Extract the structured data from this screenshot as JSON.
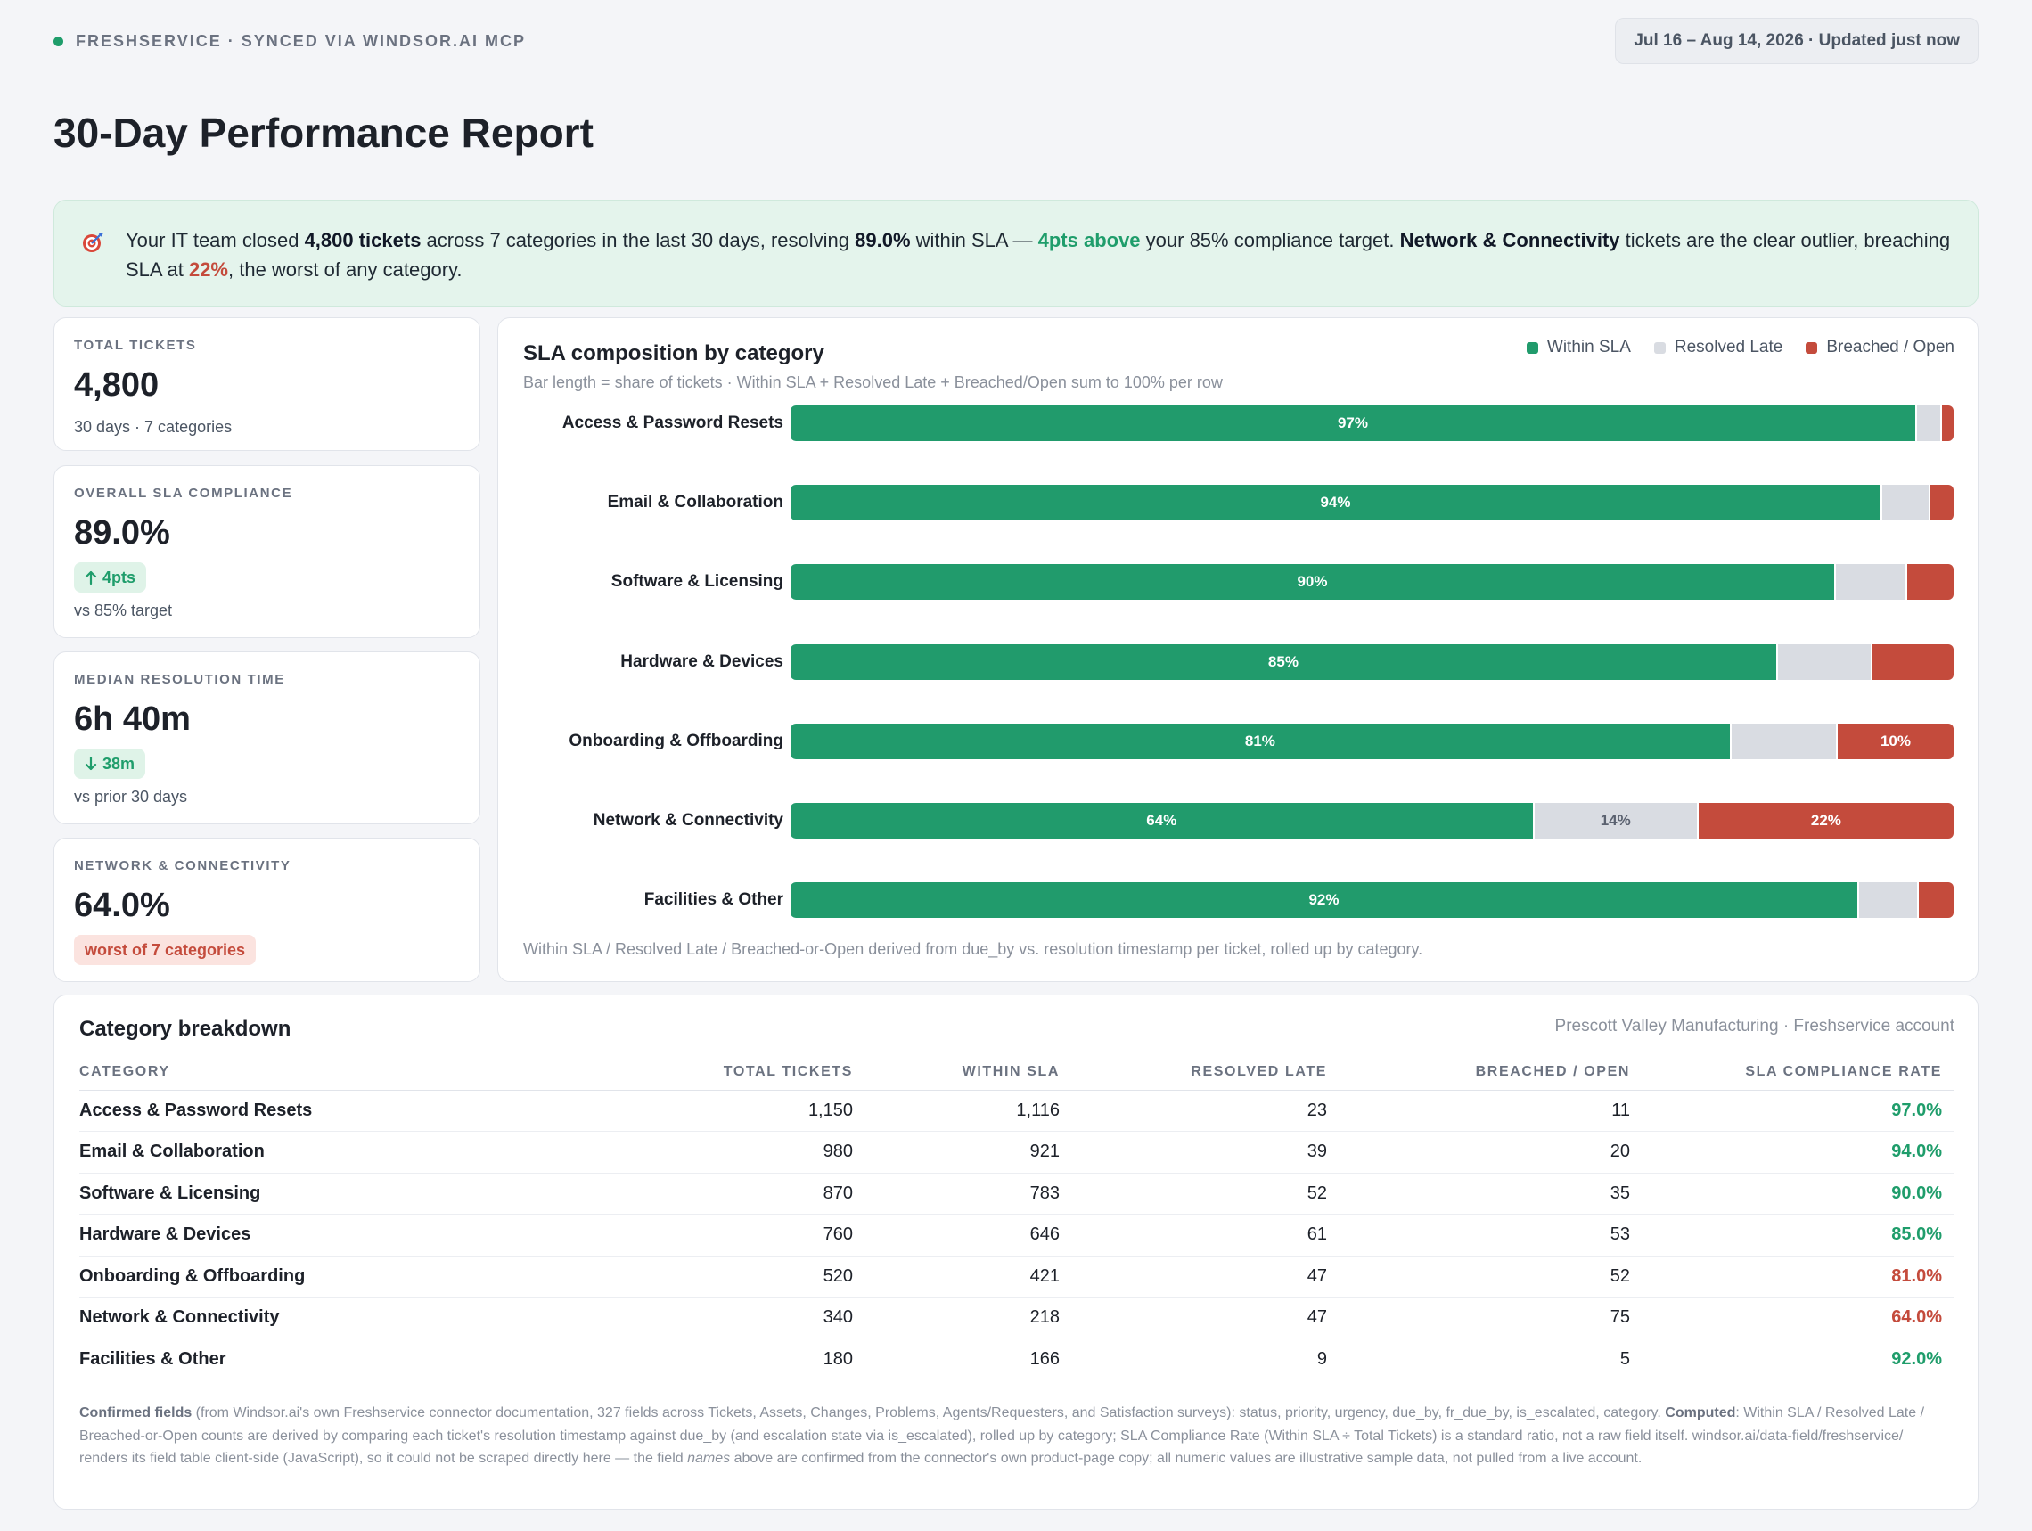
{
  "header": {
    "source": "FRESHSERVICE · SYNCED VIA WINDSOR.AI MCP",
    "date_range": "Jul 16 – Aug 14, 2026 · Updated just now",
    "title": "30-Day Performance Report"
  },
  "summary": {
    "p1": "Your IT team closed ",
    "p2": "4,800 tickets",
    "p3": " across 7 categories in the last 30 days, resolving ",
    "p4": "89.0%",
    "p5": " within SLA — ",
    "p6": "4pts above",
    "p7": " your 85% compliance target. ",
    "p8": "Network & Connectivity",
    "p9": " tickets are the clear outlier, breaching SLA at ",
    "p10": "22%",
    "p11": ", the worst of any category."
  },
  "kpis": {
    "total": {
      "label": "TOTAL TICKETS",
      "value": "4,800",
      "sub": "30 days · 7 categories"
    },
    "sla": {
      "label": "OVERALL SLA COMPLIANCE",
      "value": "89.0%",
      "chip": "4pts",
      "sub": "vs 85% target"
    },
    "median": {
      "label": "MEDIAN RESOLUTION TIME",
      "value": "6h 40m",
      "chip": "38m",
      "sub": "vs prior 30 days"
    },
    "network": {
      "label": "NETWORK & CONNECTIVITY",
      "value": "64.0%",
      "chip": "worst of 7 categories"
    }
  },
  "chart": {
    "footnote": "Within SLA / Resolved Late / Breached-or-Open derived from due_by vs. resolution timestamp per ticket, rolled up by category."
  },
  "chart_data": {
    "type": "bar",
    "stacked": true,
    "orientation": "horizontal",
    "title": "SLA composition by category",
    "subtitle": "Bar length = share of tickets · Within SLA + Resolved Late + Breached/Open sum to 100% per row",
    "legend_position": "top-right",
    "categories": [
      "Access & Password Resets",
      "Email & Collaboration",
      "Software & Licensing",
      "Hardware & Devices",
      "Onboarding & Offboarding",
      "Network & Connectivity",
      "Facilities & Other"
    ],
    "series": [
      {
        "name": "Within SLA",
        "color": "#219b6c",
        "values": [
          97.0,
          94.0,
          90.0,
          85.0,
          81.0,
          64.0,
          92.0
        ],
        "labels": [
          "97%",
          "94%",
          "90%",
          "85%",
          "81%",
          "64%",
          "92%"
        ]
      },
      {
        "name": "Resolved Late",
        "color": "#d9dce2",
        "values": [
          2.0,
          4.0,
          6.0,
          8.0,
          9.0,
          14.0,
          5.0
        ],
        "labels": [
          "",
          "",
          "",
          "",
          "",
          "14%",
          ""
        ]
      },
      {
        "name": "Breached / Open",
        "color": "#c44b3c",
        "values": [
          1.0,
          2.0,
          4.0,
          7.0,
          10.0,
          22.0,
          3.0
        ],
        "labels": [
          "",
          "",
          "",
          "",
          "10%",
          "22%",
          ""
        ]
      }
    ],
    "xlim": [
      0,
      100
    ]
  },
  "table": {
    "title": "Category breakdown",
    "account": "Prescott Valley Manufacturing · Freshservice account",
    "columns": [
      "CATEGORY",
      "TOTAL TICKETS",
      "WITHIN SLA",
      "RESOLVED LATE",
      "BREACHED / OPEN",
      "SLA COMPLIANCE RATE"
    ],
    "rows": [
      [
        "Access & Password Resets",
        "1,150",
        "1,116",
        "23",
        "11",
        "97.0%"
      ],
      [
        "Email & Collaboration",
        "980",
        "921",
        "39",
        "20",
        "94.0%"
      ],
      [
        "Software & Licensing",
        "870",
        "783",
        "52",
        "35",
        "90.0%"
      ],
      [
        "Hardware & Devices",
        "760",
        "646",
        "61",
        "53",
        "85.0%"
      ],
      [
        "Onboarding & Offboarding",
        "520",
        "421",
        "47",
        "52",
        "81.0%"
      ],
      [
        "Network & Connectivity",
        "340",
        "218",
        "47",
        "75",
        "64.0%"
      ],
      [
        "Facilities & Other",
        "180",
        "166",
        "9",
        "5",
        "92.0%"
      ]
    ],
    "notes": {
      "n1": "Confirmed fields",
      "n2": " (from Windsor.ai's own Freshservice connector documentation, 327 fields across Tickets, Assets, Changes, Problems, Agents/Requesters, and Satisfaction surveys): status, priority, urgency, due_by, fr_due_by, is_escalated, category. ",
      "n3": "Computed",
      "n4": ": Within SLA / Resolved Late / Breached-or-Open counts are derived by comparing each ticket's resolution timestamp against due_by (and escalation state via is_escalated), rolled up by category; SLA Compliance Rate (Within SLA ÷ Total Tickets) is a standard ratio, not a raw field itself. windsor.ai/data-field/freshservice/ renders its field table client-side (JavaScript), so it could not be scraped directly here — the field ",
      "n5": "names",
      "n6": " above are confirmed from the connector's own product-page copy; all numeric values are illustrative sample data, not pulled from a live account."
    }
  },
  "colors": {
    "accent_green": "#1f9d6b",
    "accent_red": "#c44b3c",
    "late_gray": "#d9dce2",
    "banner_bg": "#e4f4ec"
  }
}
